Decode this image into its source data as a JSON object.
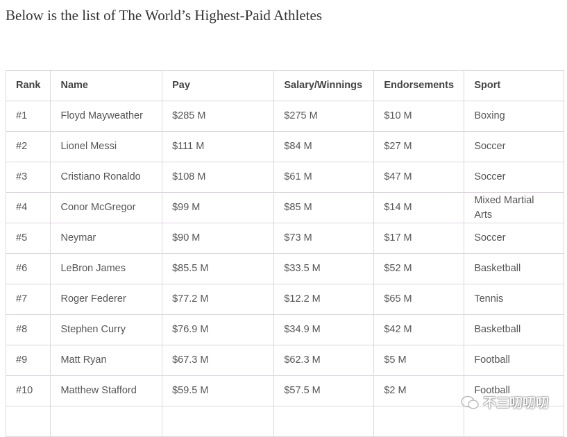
{
  "title": "Below is the list of The World’s Highest-Paid Athletes",
  "table": {
    "header": [
      "Rank",
      "Name",
      "Pay",
      "Salary/Winnings",
      "Endorsements",
      "Sport"
    ],
    "rows": [
      [
        "#1",
        "Floyd Mayweather",
        "$285 M",
        "$275 M",
        "$10 M",
        "Boxing"
      ],
      [
        "#2",
        "Lionel Messi",
        "$111 M",
        "$84 M",
        "$27 M",
        "Soccer"
      ],
      [
        "#3",
        "Cristiano Ronaldo",
        "$108 M",
        "$61 M",
        "$47 M",
        "Soccer"
      ],
      [
        "#4",
        "Conor McGregor",
        "$99 M",
        "$85 M",
        "$14 M",
        "Mixed Martial Arts"
      ],
      [
        "#5",
        "Neymar",
        "$90 M",
        "$73 M",
        "$17 M",
        "Soccer"
      ],
      [
        "#6",
        "LeBron James",
        "$85.5 M",
        "$33.5 M",
        "$52 M",
        "Basketball"
      ],
      [
        "#7",
        "Roger Federer",
        "$77.2 M",
        "$12.2 M",
        "$65 M",
        "Tennis"
      ],
      [
        "#8",
        "Stephen Curry",
        "$76.9 M",
        "$34.9 M",
        "$42 M",
        "Basketball"
      ],
      [
        "#9",
        "Matt Ryan",
        "$67.3 M",
        "$62.3 M",
        "$5 M",
        "Football"
      ],
      [
        "#10",
        "Matthew Stafford",
        "$59.5 M",
        "$57.5 M",
        "$2 M",
        "Football"
      ]
    ]
  },
  "watermark": "不三叨叨叨"
}
